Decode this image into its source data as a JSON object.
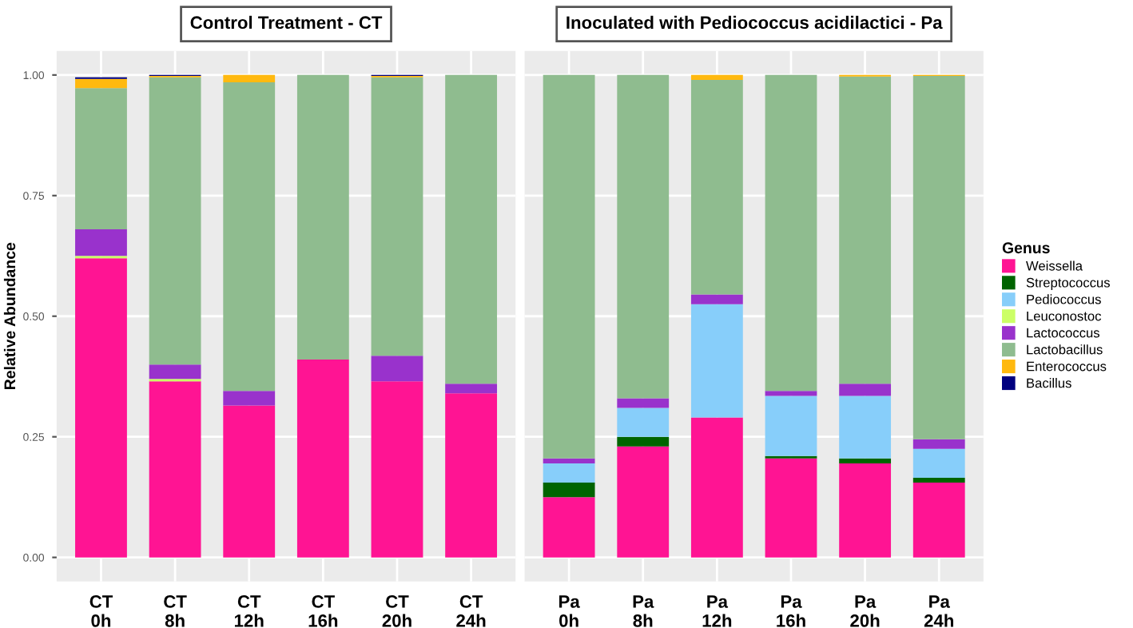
{
  "chart_data": [
    {
      "type": "bar",
      "stacked": true,
      "title": "Control Treatment - CT",
      "ylabel": "Relative Abundance",
      "categories": [
        "CT\n0h",
        "CT\n8h",
        "CT\n12h",
        "CT\n16h",
        "CT\n20h",
        "CT\n24h"
      ],
      "ylim": [
        -0.05,
        1.05
      ],
      "yticks": [
        {
          "value": 0,
          "label": "0.00"
        },
        {
          "value": 0.25,
          "label": "0.25"
        },
        {
          "value": 0.5,
          "label": "0.50"
        },
        {
          "value": 0.75,
          "label": "0.75"
        },
        {
          "value": 1,
          "label": "1.00"
        }
      ],
      "grid": true,
      "series": [
        {
          "color": "#ff1493",
          "values": [
            0.62,
            0.365,
            0.315,
            0.41,
            0.365,
            0.34
          ]
        },
        {
          "color": "#006400",
          "values": [
            0,
            0,
            0,
            0,
            0,
            0
          ]
        },
        {
          "color": "#87cefa",
          "values": [
            0,
            0,
            0,
            0,
            0,
            0
          ]
        },
        {
          "color": "#ccff66",
          "values": [
            0.005,
            0.005,
            0,
            0,
            0,
            0
          ]
        },
        {
          "color": "#9932cc",
          "values": [
            0.055,
            0.03,
            0.03,
            0,
            0.053,
            0.02
          ]
        },
        {
          "color": "#8fbc8f",
          "values": [
            0.293,
            0.595,
            0.64,
            0.59,
            0.577,
            0.64
          ]
        },
        {
          "color": "#ffb90f",
          "values": [
            0.019,
            0.003,
            0.015,
            0,
            0.003,
            0
          ]
        },
        {
          "color": "#000080",
          "values": [
            0.003,
            0.002,
            0,
            0,
            0.002,
            0
          ]
        }
      ]
    },
    {
      "type": "bar",
      "stacked": true,
      "title": "Inoculated with Pediococcus acidilactici - Pa",
      "legend_title": "Genus",
      "legend": "right",
      "tick_labels": "x",
      "categories": [
        "Pa\n0h",
        "Pa\n8h",
        "Pa\n12h",
        "Pa\n16h",
        "Pa\n20h",
        "Pa\n24h"
      ],
      "ylim": [
        -0.05,
        1.05
      ],
      "grid": true,
      "series": [
        {
          "name": "Weissella",
          "color": "#ff1493",
          "values": [
            0.125,
            0.23,
            0.29,
            0.205,
            0.195,
            0.155
          ]
        },
        {
          "name": "Streptococcus",
          "color": "#006400",
          "values": [
            0.03,
            0.02,
            0,
            0.005,
            0.01,
            0.01
          ]
        },
        {
          "name": "Pediococcus",
          "color": "#87cefa",
          "values": [
            0.04,
            0.06,
            0.235,
            0.125,
            0.13,
            0.06
          ]
        },
        {
          "name": "Leuconostoc",
          "color": "#ccff66",
          "values": [
            0,
            0,
            0,
            0,
            0,
            0
          ]
        },
        {
          "name": "Lactococcus",
          "color": "#9932cc",
          "values": [
            0.01,
            0.02,
            0.02,
            0.01,
            0.025,
            0.02
          ]
        },
        {
          "name": "Lactobacillus",
          "color": "#8fbc8f",
          "values": [
            0.795,
            0.67,
            0.445,
            0.655,
            0.637,
            0.753
          ]
        },
        {
          "name": "Enterococcus",
          "color": "#ffb90f",
          "values": [
            0,
            0,
            0.01,
            0,
            0.003,
            0.002
          ]
        },
        {
          "name": "Bacillus",
          "color": "#000080",
          "values": [
            0,
            0,
            0,
            0,
            0,
            0
          ]
        }
      ]
    }
  ]
}
